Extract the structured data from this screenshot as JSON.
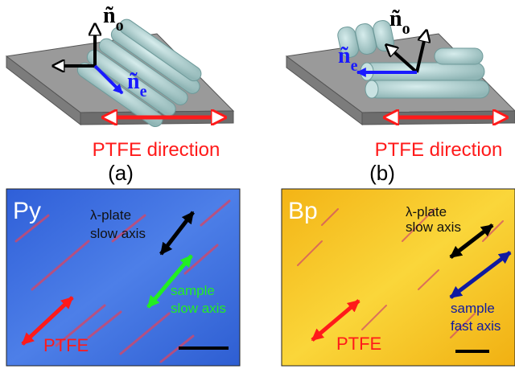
{
  "panel_a": {
    "n_o": "ñ",
    "n_o_sub": "o",
    "n_e": "ñ",
    "n_e_sub": "e",
    "ptfe_label": "PTFE direction",
    "caption": "(a)"
  },
  "panel_b": {
    "n_o": "ñ",
    "n_o_sub": "o",
    "n_e": "ñ",
    "n_e_sub": "e",
    "ptfe_label": "PTFE direction",
    "caption": "(b)"
  },
  "micro_py": {
    "sample_name": "Py",
    "lambda_line1": "λ-plate",
    "lambda_line2": "slow axis",
    "sample_line1": "sample",
    "sample_line2": "slow axis",
    "ptfe": "PTFE"
  },
  "micro_bp": {
    "sample_name": "Bp",
    "lambda_line1": "λ-plate",
    "lambda_line2": "slow axis",
    "sample_line1": "sample",
    "sample_line2": "fast axis",
    "ptfe": "PTFE"
  },
  "colors": {
    "red": "#ff1a1a",
    "blue_label": "#1a1aff",
    "green_arrow": "#22ee22",
    "navy_arrow": "#101aa0",
    "cylinder": "#b7d6d6",
    "substrate_top": "#9a9a9a",
    "py_background": "#3a6be0",
    "bp_background": "#f6c21a"
  }
}
